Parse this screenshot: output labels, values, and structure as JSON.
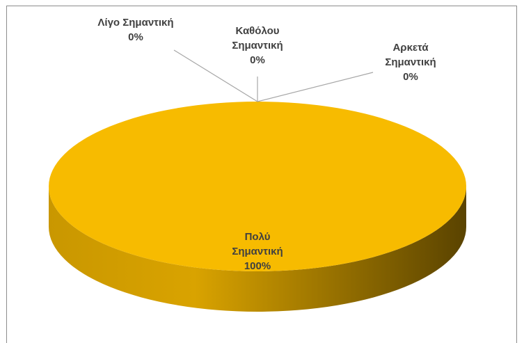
{
  "chart_data": {
    "type": "pie",
    "three_d": true,
    "categories": [
      "Λίγο Σημαντική",
      "Καθόλου Σημαντική",
      "Αρκετά Σημαντική",
      "Πολύ Σημαντική"
    ],
    "values": [
      0,
      0,
      0,
      100
    ],
    "value_labels": [
      "0%",
      "0%",
      "0%",
      "100%"
    ],
    "colors": [
      "#4472c4",
      "#ed7d31",
      "#a5a5a5",
      "#f7bb00"
    ]
  }
}
